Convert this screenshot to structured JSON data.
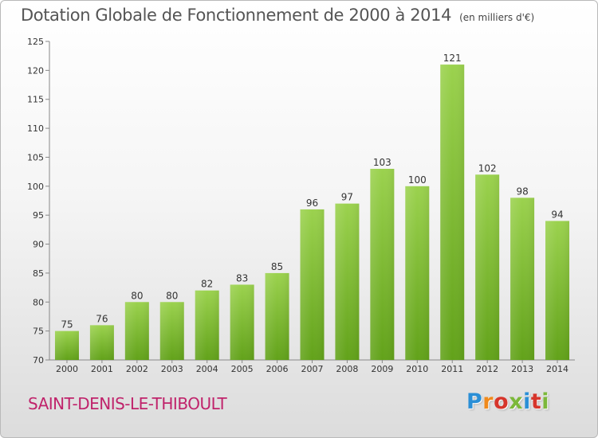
{
  "chart_data": {
    "type": "bar",
    "title": "Dotation Globale de Fonctionnement de 2000 à 2014",
    "subtitle": "(en milliers d'€)",
    "categories": [
      "2000",
      "2001",
      "2002",
      "2003",
      "2004",
      "2005",
      "2006",
      "2007",
      "2008",
      "2009",
      "2010",
      "2011",
      "2012",
      "2013",
      "2014"
    ],
    "values": [
      75,
      76,
      80,
      80,
      82,
      83,
      85,
      96,
      97,
      103,
      100,
      121,
      102,
      98,
      94
    ],
    "ylim": [
      70,
      125
    ],
    "yticks": [
      70,
      75,
      80,
      85,
      90,
      95,
      100,
      105,
      110,
      115,
      120,
      125
    ],
    "grid": false,
    "bar_color": "#7db83a"
  },
  "footer": {
    "place": "SAINT-DENIS-LE-THIBOULT",
    "brand": "Proxiti",
    "place_color": "#c0236b"
  }
}
